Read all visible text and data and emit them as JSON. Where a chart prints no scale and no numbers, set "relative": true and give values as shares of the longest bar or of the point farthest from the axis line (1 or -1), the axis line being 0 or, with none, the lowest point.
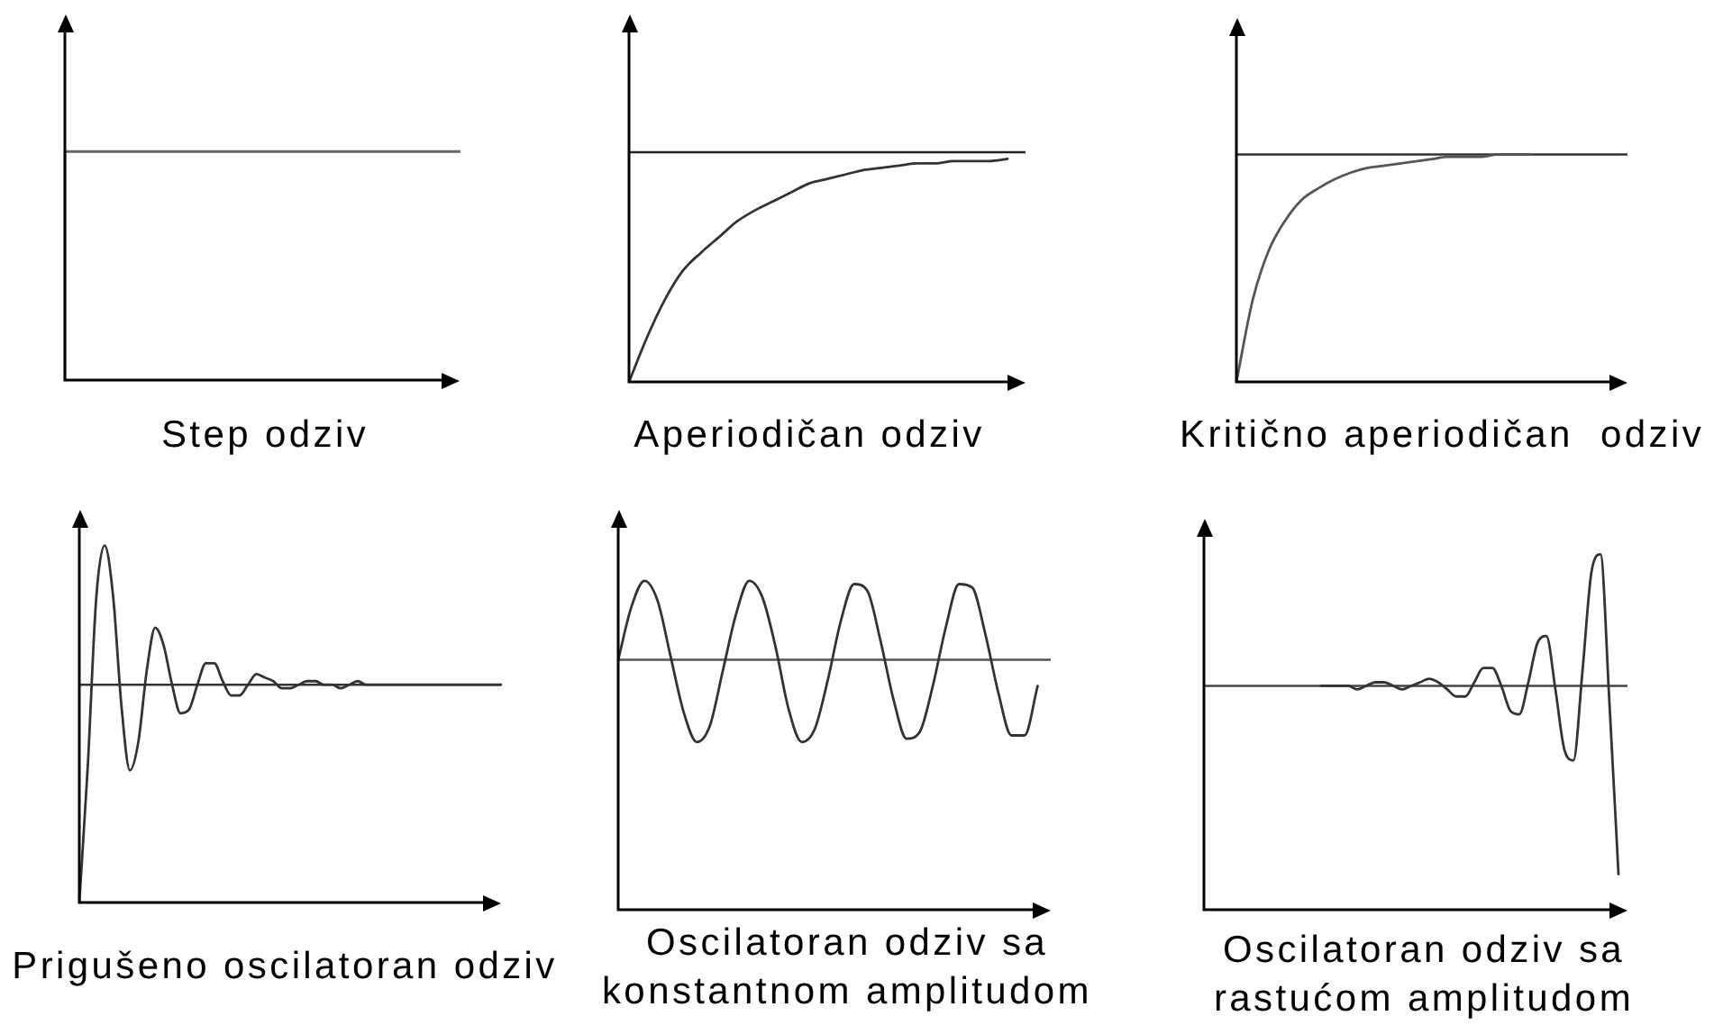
{
  "chart_data": [
    {
      "type": "step",
      "title": "Step odziv",
      "relative": true,
      "categories": [
        null,
        null,
        null,
        null,
        null,
        null,
        null,
        null,
        null,
        null,
        null
      ],
      "series": [
        {
          "color": "#666666",
          "values": [
            0,
            1,
            1,
            1,
            1,
            1,
            1,
            1,
            1,
            1,
            1
          ]
        }
      ]
    },
    {
      "type": "line",
      "title": "Aperiodičan odziv",
      "relative": true,
      "categories": [
        null,
        null,
        null,
        null,
        null,
        null,
        null,
        null,
        null,
        null,
        null,
        null,
        null,
        null,
        null,
        null,
        null,
        null,
        null,
        null,
        null,
        null,
        null
      ],
      "series": [
        {
          "color": "#333333",
          "values": [
            0,
            0.2,
            0.37,
            0.5,
            0.58,
            0.65,
            0.72,
            0.77,
            0.81,
            0.85,
            0.89,
            0.91,
            0.93,
            0.95,
            0.96,
            0.97,
            0.98,
            0.98,
            0.99,
            0.99,
            0.99,
            1,
            null
          ]
        }
      ],
      "ref_lines": [
        {
          "axis": "y",
          "value": 1.03,
          "color": "#222222"
        }
      ]
    },
    {
      "type": "line",
      "title": "Kritično aperiodičan  odziv",
      "relative": true,
      "categories": [
        null,
        null,
        null,
        null,
        null,
        null,
        null,
        null,
        null,
        null,
        null,
        null,
        null,
        null,
        null,
        null,
        null,
        null,
        null,
        null,
        null,
        null,
        null,
        null,
        null
      ],
      "series": [
        {
          "color": "#555555",
          "values": [
            0,
            0.36,
            0.58,
            0.71,
            0.8,
            0.85,
            0.89,
            0.92,
            0.94,
            0.95,
            0.96,
            0.97,
            0.98,
            0.99,
            0.99,
            0.99,
            1,
            1,
            1,
            null,
            null,
            null,
            null,
            null,
            null
          ]
        }
      ],
      "ref_lines": [
        {
          "axis": "y",
          "value": 1,
          "color": "#333333"
        }
      ]
    },
    {
      "type": "line",
      "title": "Prigušeno oscilatoran odziv",
      "relative": true,
      "categories": [
        null,
        null,
        null,
        null,
        null,
        null,
        null,
        null,
        null,
        null,
        null,
        null,
        null,
        null,
        null,
        null,
        null,
        null,
        null,
        null,
        null,
        null,
        null,
        null,
        null,
        null,
        null,
        null,
        null,
        null,
        null,
        null,
        null,
        null,
        null,
        null,
        null,
        null,
        null,
        null,
        null,
        null,
        null,
        null,
        null,
        null,
        null,
        null,
        null,
        null,
        null
      ],
      "series": [
        {
          "color": "#333333",
          "values": [
            0,
            0.38,
            0.85,
            1,
            0.86,
            0.55,
            0.37,
            0.45,
            0.65,
            0.77,
            0.72,
            0.61,
            0.53,
            0.54,
            0.61,
            0.67,
            0.67,
            0.62,
            0.58,
            0.58,
            0.61,
            0.64,
            0.63,
            0.62,
            0.6,
            0.6,
            0.61,
            0.62,
            0.62,
            0.61,
            0.61,
            0.6,
            0.61,
            0.62,
            0.61,
            0.61,
            0.61,
            0.61,
            0.61,
            0.61,
            0.61,
            0.61,
            0.61,
            0.61,
            0.61,
            0.61,
            0.61,
            0.61,
            0.61,
            0.61,
            0.61
          ]
        }
      ],
      "ref_lines": [
        {
          "axis": "y",
          "value": 0.61,
          "color": "#333333"
        }
      ]
    },
    {
      "type": "line",
      "title": "Oscilatoran odziv sa konstantnom amplitudom",
      "relative": true,
      "categories": [
        null,
        null,
        null,
        null,
        null,
        null,
        null,
        null,
        null,
        null,
        null,
        null,
        null,
        null,
        null,
        null,
        null,
        null,
        null,
        null,
        null,
        null,
        null,
        null,
        null,
        null,
        null,
        null,
        null,
        null,
        null,
        null,
        null,
        null
      ],
      "series": [
        {
          "color": "#333333",
          "values": [
            0.76,
            0.92,
            1,
            0.94,
            0.77,
            0.6,
            0.51,
            0.56,
            0.73,
            0.9,
            1,
            0.95,
            0.8,
            0.61,
            0.51,
            0.55,
            0.7,
            0.88,
            0.99,
            0.97,
            0.82,
            0.64,
            0.52,
            0.54,
            0.68,
            0.86,
            0.99,
            0.98,
            0.84,
            0.66,
            0.53,
            0.53,
            0.68,
            null
          ]
        }
      ],
      "ref_lines": [
        {
          "axis": "y",
          "value": 0.76,
          "color": "#555555"
        }
      ]
    },
    {
      "type": "line",
      "title": "Oscilatoran odziv sa rastućom amplitudom",
      "relative": true,
      "categories": [
        null,
        null,
        null,
        null,
        null,
        null,
        null,
        null,
        null,
        null,
        null,
        null,
        null,
        null,
        null,
        null,
        null,
        null,
        null,
        null,
        null,
        null,
        null,
        null,
        null,
        null,
        null,
        null,
        null,
        null,
        null,
        null,
        null,
        null,
        null,
        null,
        null,
        null,
        null,
        null,
        null,
        null,
        null,
        null,
        null,
        null,
        null,
        null
      ],
      "series": [
        {
          "color": "#333333",
          "values": [
            null,
            null,
            null,
            null,
            null,
            null,
            null,
            null,
            null,
            null,
            null,
            null,
            null,
            0.63,
            0.63,
            0.63,
            0.63,
            0.62,
            0.63,
            0.64,
            0.64,
            0.63,
            0.62,
            0.63,
            0.64,
            0.65,
            0.64,
            0.62,
            0.6,
            0.6,
            0.64,
            0.68,
            0.68,
            0.63,
            0.56,
            0.55,
            0.64,
            0.75,
            0.77,
            0.62,
            0.45,
            0.42,
            0.67,
            0.95,
            1,
            0.58,
            0.1,
            null
          ]
        }
      ],
      "ref_lines": [
        {
          "axis": "y",
          "value": 0.63,
          "color": "#444444"
        }
      ]
    }
  ]
}
